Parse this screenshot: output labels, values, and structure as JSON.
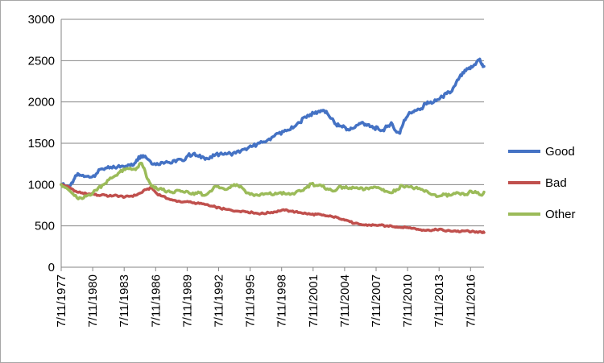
{
  "chart_data": {
    "type": "line",
    "x_tick_labels": [
      "7/11/1977",
      "7/11/1980",
      "7/11/1983",
      "7/11/1986",
      "7/11/1989",
      "7/11/1992",
      "7/11/1995",
      "7/11/1998",
      "7/11/2001",
      "7/11/2004",
      "7/11/2007",
      "7/11/2010",
      "7/11/2013",
      "7/11/2016"
    ],
    "x_range": [
      1977.52,
      2017.2
    ],
    "ylim": [
      0,
      3000
    ],
    "y_ticks": [
      0,
      500,
      1000,
      1500,
      2000,
      2500,
      3000
    ],
    "y_tick_labels": [
      "0",
      "500",
      "1000",
      "1500",
      "2000",
      "2500",
      "3000"
    ],
    "grid": "horizontal",
    "legend_position": "right",
    "series": [
      {
        "name": "Good",
        "color": "#4472c4",
        "x": [
          1977.52,
          1978.3,
          1978.7,
          1979.0,
          1979.3,
          1979.8,
          1980.3,
          1980.8,
          1981.3,
          1981.8,
          1982.3,
          1982.8,
          1983.3,
          1983.8,
          1984.2,
          1984.6,
          1985.0,
          1985.4,
          1985.9,
          1986.4,
          1986.9,
          1987.4,
          1987.9,
          1988.4,
          1988.9,
          1989.4,
          1989.9,
          1990.4,
          1990.9,
          1991.4,
          1991.9,
          1992.4,
          1992.9,
          1993.4,
          1993.9,
          1994.4,
          1994.9,
          1995.4,
          1995.9,
          1996.4,
          1996.9,
          1997.4,
          1997.9,
          1998.4,
          1998.9,
          1999.4,
          1999.9,
          2000.4,
          2000.9,
          2001.3,
          2001.7,
          2002.1,
          2002.5,
          2002.9,
          2003.3,
          2003.7,
          2004.1,
          2004.5,
          2004.9,
          2005.3,
          2005.7,
          2006.1,
          2006.5,
          2006.9,
          2007.3,
          2007.7,
          2008.1,
          2008.5,
          2008.9,
          2009.3,
          2009.7,
          2010.1,
          2010.5,
          2010.9,
          2011.3,
          2011.7,
          2012.1,
          2012.5,
          2012.9,
          2013.3,
          2013.7,
          2014.1,
          2014.5,
          2014.9,
          2015.3,
          2015.7,
          2016.1,
          2016.5,
          2016.8,
          2017.0,
          2017.2
        ],
        "values": [
          1000,
          975,
          1060,
          1110,
          1115,
          1100,
          1090,
          1130,
          1190,
          1200,
          1200,
          1215,
          1225,
          1240,
          1230,
          1300,
          1350,
          1345,
          1280,
          1240,
          1270,
          1280,
          1260,
          1300,
          1290,
          1350,
          1370,
          1340,
          1330,
          1310,
          1350,
          1370,
          1380,
          1375,
          1380,
          1410,
          1420,
          1460,
          1490,
          1510,
          1540,
          1580,
          1620,
          1640,
          1660,
          1700,
          1750,
          1820,
          1850,
          1860,
          1890,
          1900,
          1860,
          1800,
          1730,
          1710,
          1700,
          1660,
          1680,
          1720,
          1750,
          1730,
          1700,
          1690,
          1670,
          1660,
          1700,
          1750,
          1650,
          1620,
          1780,
          1850,
          1880,
          1900,
          1920,
          1980,
          1990,
          2000,
          2030,
          2060,
          2100,
          2120,
          2200,
          2300,
          2350,
          2400,
          2420,
          2480,
          2520,
          2450,
          2430
        ]
      },
      {
        "name": "Bad",
        "color": "#c0504d",
        "x": [
          1977.52,
          1978.0,
          1978.5,
          1979.0,
          1979.5,
          1980.0,
          1980.5,
          1981.0,
          1981.5,
          1982.0,
          1982.5,
          1983.0,
          1983.5,
          1984.0,
          1984.5,
          1985.0,
          1985.5,
          1986.0,
          1986.5,
          1987.0,
          1987.5,
          1988.0,
          1988.5,
          1989.0,
          1989.5,
          1990.0,
          1990.5,
          1991.0,
          1991.5,
          1992.0,
          1992.5,
          1993.0,
          1993.5,
          1994.0,
          1994.5,
          1995.0,
          1995.5,
          1996.0,
          1996.5,
          1997.0,
          1997.5,
          1998.0,
          1998.5,
          1999.0,
          1999.5,
          2000.0,
          2000.5,
          2001.0,
          2001.5,
          2002.0,
          2002.5,
          2003.0,
          2003.5,
          2004.0,
          2004.5,
          2005.0,
          2005.5,
          2006.0,
          2006.5,
          2007.0,
          2007.5,
          2008.0,
          2008.5,
          2009.0,
          2009.5,
          2010.0,
          2010.5,
          2011.0,
          2011.5,
          2012.0,
          2012.5,
          2013.0,
          2013.5,
          2014.0,
          2014.5,
          2015.0,
          2015.5,
          2016.0,
          2016.5,
          2017.0,
          2017.2
        ],
        "values": [
          1000,
          980,
          950,
          910,
          900,
          880,
          890,
          870,
          880,
          860,
          870,
          860,
          850,
          860,
          870,
          900,
          940,
          960,
          890,
          860,
          830,
          810,
          800,
          790,
          790,
          780,
          770,
          760,
          740,
          730,
          710,
          700,
          690,
          680,
          680,
          670,
          660,
          650,
          650,
          660,
          670,
          680,
          690,
          680,
          670,
          660,
          650,
          640,
          640,
          630,
          620,
          610,
          600,
          580,
          560,
          530,
          520,
          510,
          510,
          510,
          510,
          500,
          500,
          490,
          480,
          480,
          470,
          460,
          450,
          450,
          450,
          460,
          440,
          440,
          440,
          430,
          440,
          430,
          430,
          420,
          420
        ]
      },
      {
        "name": "Other",
        "color": "#9bbb59",
        "x": [
          1977.52,
          1978.0,
          1978.5,
          1979.0,
          1979.5,
          1980.0,
          1980.5,
          1981.0,
          1981.5,
          1982.0,
          1982.5,
          1983.0,
          1983.5,
          1984.0,
          1984.5,
          1985.0,
          1985.3,
          1985.6,
          1986.0,
          1986.5,
          1987.0,
          1987.5,
          1988.0,
          1988.5,
          1989.0,
          1989.5,
          1990.0,
          1990.5,
          1991.0,
          1991.5,
          1992.0,
          1992.5,
          1993.0,
          1993.5,
          1994.0,
          1994.5,
          1995.0,
          1995.5,
          1996.0,
          1996.5,
          1997.0,
          1997.5,
          1998.0,
          1998.5,
          1999.0,
          1999.5,
          2000.0,
          2000.5,
          2001.0,
          2001.5,
          2002.0,
          2002.5,
          2003.0,
          2003.5,
          2004.0,
          2004.5,
          2005.0,
          2005.5,
          2006.0,
          2006.5,
          2007.0,
          2007.5,
          2008.0,
          2008.5,
          2009.0,
          2009.5,
          2010.0,
          2010.5,
          2011.0,
          2011.5,
          2012.0,
          2012.5,
          2013.0,
          2013.5,
          2014.0,
          2014.5,
          2015.0,
          2015.5,
          2016.0,
          2016.5,
          2017.0,
          2017.2
        ],
        "values": [
          1000,
          960,
          900,
          840,
          830,
          870,
          900,
          960,
          1000,
          1060,
          1100,
          1150,
          1180,
          1200,
          1180,
          1260,
          1200,
          1070,
          980,
          950,
          940,
          920,
          900,
          930,
          910,
          900,
          880,
          900,
          870,
          920,
          980,
          960,
          940,
          990,
          1000,
          960,
          900,
          880,
          870,
          880,
          890,
          880,
          900,
          890,
          880,
          900,
          920,
          960,
          1010,
          990,
          980,
          950,
          920,
          960,
          970,
          950,
          960,
          950,
          940,
          960,
          970,
          950,
          920,
          900,
          940,
          990,
          980,
          960,
          950,
          930,
          900,
          880,
          860,
          880,
          870,
          890,
          880,
          880,
          920,
          900,
          870,
          910
        ]
      }
    ]
  }
}
